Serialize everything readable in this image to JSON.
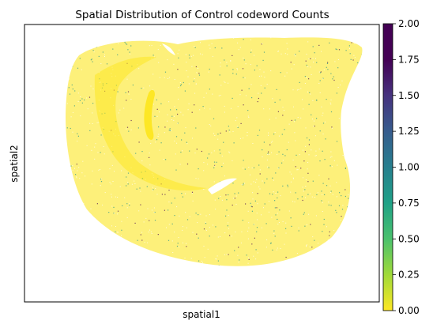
{
  "chart_data": {
    "type": "scatter",
    "title": "Spatial Distribution of Control codeword Counts",
    "xlabel": "spatial1",
    "ylabel": "spatial2",
    "grid": false,
    "x_ticks_shown": false,
    "y_ticks_shown": false,
    "color_scale": {
      "name": "viridis",
      "reversed": true,
      "min": 0.0,
      "max": 2.0,
      "ticks": [
        0.0,
        0.25,
        0.5,
        0.75,
        1.0,
        1.25,
        1.5,
        1.75,
        2.0
      ],
      "tick_labels": [
        "0.00",
        "0.25",
        "0.50",
        "0.75",
        "1.00",
        "1.25",
        "1.50",
        "1.75",
        "2.00"
      ]
    },
    "values_present": [
      0,
      1,
      2
    ],
    "dominant_value": 0,
    "colors": {
      "value_0": "#fde725",
      "value_1": "#21918c",
      "value_2": "#440154"
    }
  }
}
